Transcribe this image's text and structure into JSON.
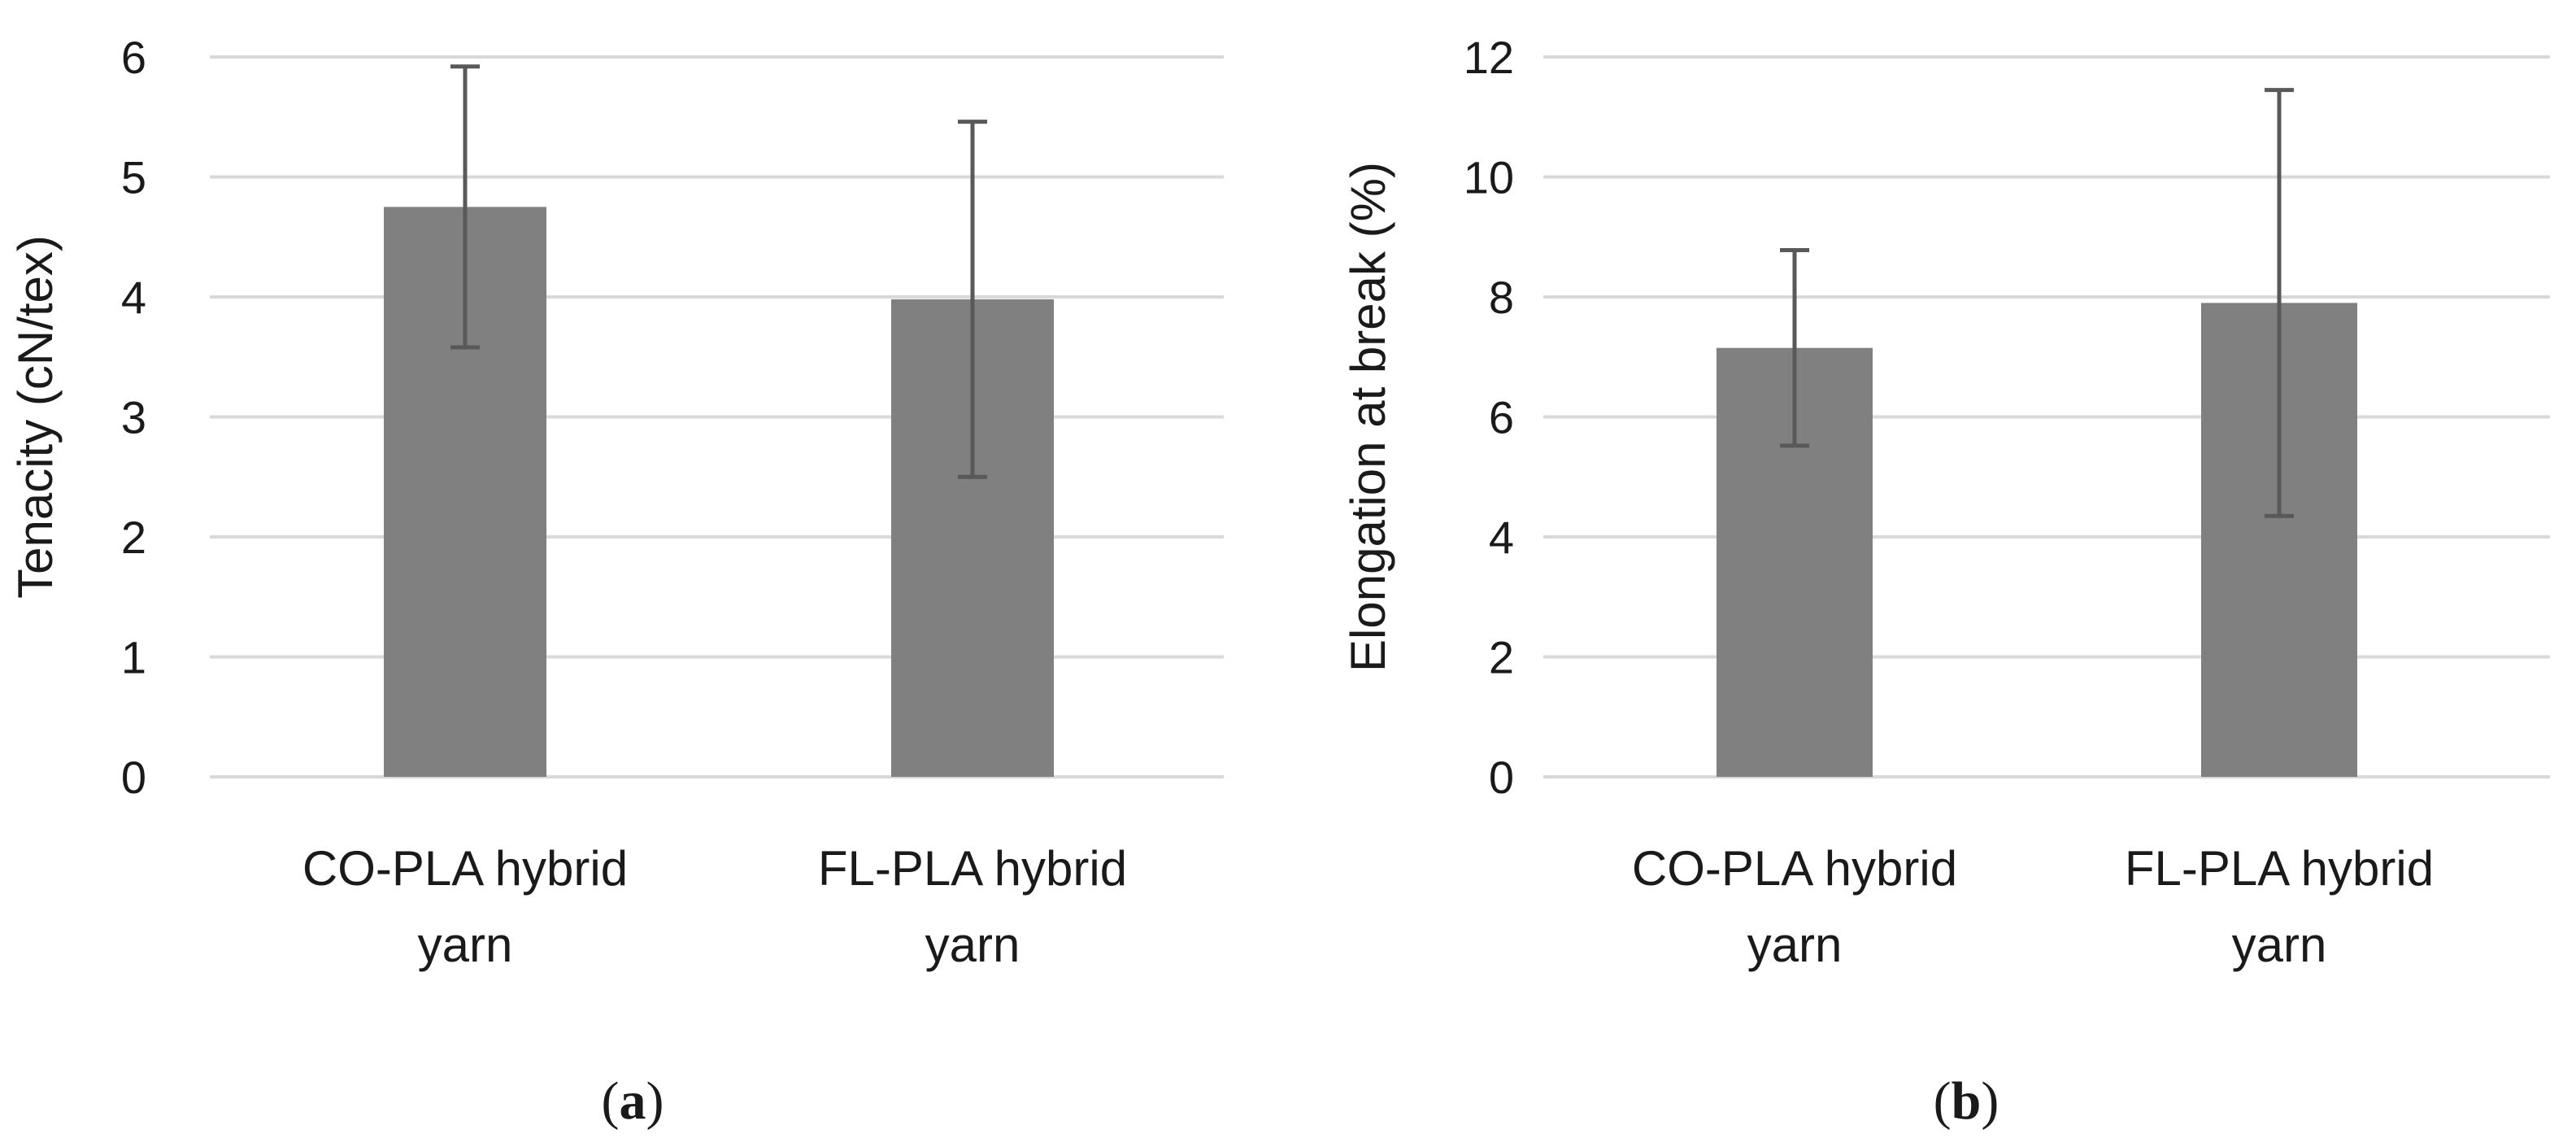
{
  "chart_data": [
    {
      "type": "bar",
      "panel": "a",
      "title": "",
      "xlabel": "",
      "ylabel": "Tenacity (cN/tex)",
      "ylim": [
        0,
        6
      ],
      "yticks": [
        0,
        1,
        2,
        3,
        4,
        5,
        6
      ],
      "grid": true,
      "categories": [
        [
          "CO-PLA hybrid",
          "yarn"
        ],
        [
          "FL-PLA hybrid",
          "yarn"
        ]
      ],
      "values": [
        4.75,
        3.98
      ],
      "error": [
        1.17,
        1.48
      ],
      "colors": {
        "bar": "#808080",
        "error": "#595959",
        "grid": "#d9d9d9"
      }
    },
    {
      "type": "bar",
      "panel": "b",
      "title": "",
      "xlabel": "",
      "ylabel": "Elongation at break (%)",
      "ylim": [
        0,
        12
      ],
      "yticks": [
        0,
        2,
        4,
        6,
        8,
        10,
        12
      ],
      "grid": true,
      "categories": [
        [
          "CO-PLA hybrid",
          "yarn"
        ],
        [
          "FL-PLA hybrid",
          "yarn"
        ]
      ],
      "values": [
        7.15,
        7.9
      ],
      "error": [
        1.63,
        3.55
      ],
      "colors": {
        "bar": "#808080",
        "error": "#595959",
        "grid": "#d9d9d9"
      }
    }
  ],
  "captions": [
    {
      "open": "(",
      "letter": "a",
      "close": ")"
    },
    {
      "open": "(",
      "letter": "b",
      "close": ")"
    }
  ]
}
